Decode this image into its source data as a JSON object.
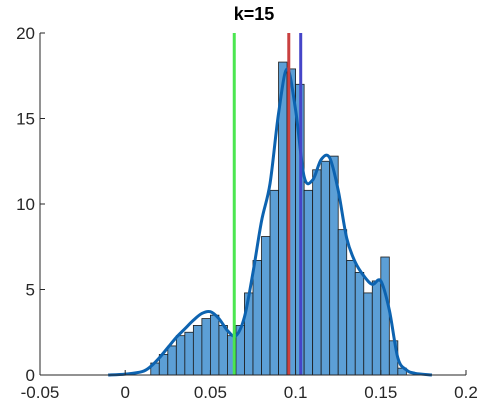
{
  "chart_data": {
    "type": "bar",
    "title": "k=15",
    "xlabel": "",
    "ylabel": "",
    "xlim": [
      -0.05,
      0.2
    ],
    "ylim": [
      0,
      20
    ],
    "xticks": [
      -0.05,
      0,
      0.05,
      0.1,
      0.15,
      0.2
    ],
    "xtick_labels": [
      "-0.05",
      "0",
      "0.05",
      "0.1",
      "0.15",
      "0.2"
    ],
    "yticks": [
      0,
      5,
      10,
      15,
      20
    ],
    "ytick_labels": [
      "0",
      "5",
      "10",
      "15",
      "20"
    ],
    "grid": false,
    "legend": "none",
    "histogram": {
      "bin_width": 0.005,
      "bin_start": [
        0.015,
        0.02,
        0.025,
        0.03,
        0.035,
        0.04,
        0.045,
        0.05,
        0.055,
        0.06,
        0.065,
        0.07,
        0.075,
        0.08,
        0.085,
        0.09,
        0.095,
        0.1,
        0.105,
        0.11,
        0.115,
        0.12,
        0.125,
        0.13,
        0.135,
        0.14,
        0.145,
        0.15,
        0.155,
        0.16
      ],
      "density": [
        0.7,
        1.2,
        1.7,
        2.3,
        2.5,
        2.9,
        3.3,
        3.5,
        2.9,
        2.3,
        2.9,
        4.8,
        6.7,
        8.1,
        10.8,
        18.3,
        17.9,
        17.0,
        10.8,
        12.0,
        12.5,
        12.8,
        8.5,
        6.7,
        6.0,
        4.8,
        5.5,
        6.9,
        2.0,
        0.4
      ],
      "face_color": "#5c9fd6",
      "edge_color": "#1a1a1a"
    },
    "kde": {
      "color": "#0d63b0",
      "x": [
        -0.01,
        0.0,
        0.01,
        0.015,
        0.02,
        0.025,
        0.03,
        0.035,
        0.04,
        0.045,
        0.05,
        0.055,
        0.06,
        0.065,
        0.07,
        0.075,
        0.08,
        0.085,
        0.09,
        0.095,
        0.1,
        0.105,
        0.11,
        0.115,
        0.12,
        0.125,
        0.13,
        0.135,
        0.14,
        0.145,
        0.15,
        0.155,
        0.16,
        0.165,
        0.17,
        0.18
      ],
      "y": [
        0,
        0.05,
        0.2,
        0.5,
        1.0,
        1.6,
        2.2,
        2.7,
        3.2,
        3.6,
        3.7,
        3.3,
        2.6,
        2.3,
        3.4,
        6.0,
        9.0,
        11.2,
        15.3,
        17.9,
        15.5,
        11.6,
        11.4,
        12.6,
        12.7,
        10.8,
        8.0,
        6.6,
        5.8,
        5.3,
        5.5,
        3.8,
        1.0,
        0.3,
        0.1,
        0
      ]
    },
    "vertical_lines": [
      {
        "x": 0.064,
        "color": "#4be650"
      },
      {
        "x": 0.096,
        "color": "#c94040"
      },
      {
        "x": 0.103,
        "color": "#4545c8"
      }
    ]
  }
}
